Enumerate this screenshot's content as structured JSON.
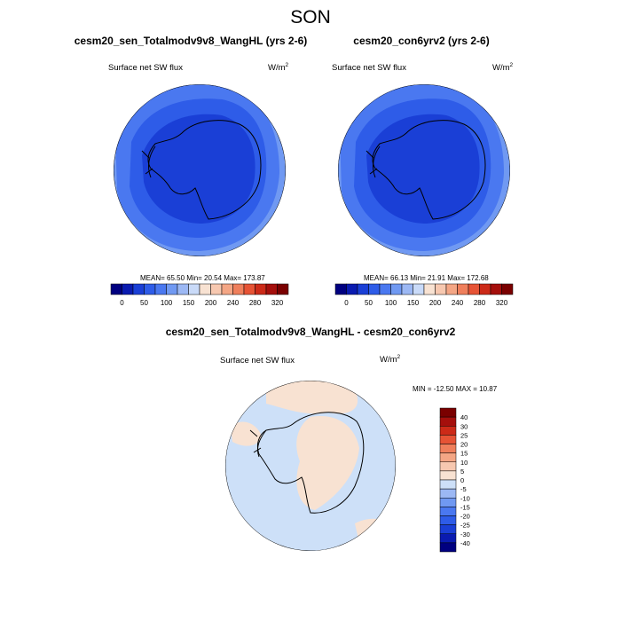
{
  "page_title": "SON",
  "colors": {
    "abs_scale": [
      "#000080",
      "#0a1bb0",
      "#1a3fd6",
      "#2e5ce8",
      "#4a78f0",
      "#7099f2",
      "#9cb8f4",
      "#c9daf8",
      "#f8e2d2",
      "#f7c8b0",
      "#f4a685",
      "#ef7f5c",
      "#e65335",
      "#cc2a18",
      "#a50f0c",
      "#7a0000"
    ],
    "diff_scale": [
      "#000080",
      "#0a1bb0",
      "#1a3fd6",
      "#2e5ce8",
      "#4a78f0",
      "#7099f2",
      "#9cb8f4",
      "#cde0f8",
      "#f8e2d2",
      "#f7c8b0",
      "#f4a685",
      "#ef7f5c",
      "#e65335",
      "#cc2a18",
      "#a50f0c",
      "#7a0000"
    ]
  },
  "chart_data": [
    {
      "type": "heatmap",
      "title": "cesm20_sen_Totalmodv9v8_WangHL (yrs 2-6)",
      "field": "Surface net SW flux",
      "units": "W/m",
      "units_exp": "2",
      "stats_text": "MEAN=  65.50  Min=  20.54  Max= 173.87",
      "mean": 65.5,
      "min": 20.54,
      "max": 173.87,
      "levels": [
        0,
        50,
        100,
        150,
        200,
        240,
        280,
        320
      ],
      "colorbar_labels": [
        "0",
        "50",
        "100",
        "150",
        "200",
        "240",
        "280",
        "320"
      ]
    },
    {
      "type": "heatmap",
      "title": "cesm20_con6yrv2 (yrs 2-6)",
      "field": "Surface net SW flux",
      "units": "W/m",
      "units_exp": "2",
      "stats_text": "MEAN=  66.13  Min=  21.91  Max= 172.68",
      "mean": 66.13,
      "min": 21.91,
      "max": 172.68,
      "levels": [
        0,
        50,
        100,
        150,
        200,
        240,
        280,
        320
      ],
      "colorbar_labels": [
        "0",
        "50",
        "100",
        "150",
        "200",
        "240",
        "280",
        "320"
      ]
    },
    {
      "type": "heatmap",
      "title": "cesm20_sen_Totalmodv9v8_WangHL - cesm20_con6yrv2",
      "field": "Surface net SW flux",
      "units": "W/m",
      "units_exp": "2",
      "stats_text": "MIN = -12.50 MAX =  10.87",
      "min": -12.5,
      "max": 10.87,
      "levels": [
        -40,
        -30,
        -25,
        -20,
        -15,
        -10,
        -5,
        0,
        5,
        10,
        15,
        20,
        25,
        30,
        40
      ],
      "colorbar_labels": [
        "40",
        "30",
        "25",
        "20",
        "15",
        "10",
        "5",
        "0",
        "-5",
        "-10",
        "-15",
        "-20",
        "-25",
        "-30",
        "-40"
      ]
    }
  ]
}
